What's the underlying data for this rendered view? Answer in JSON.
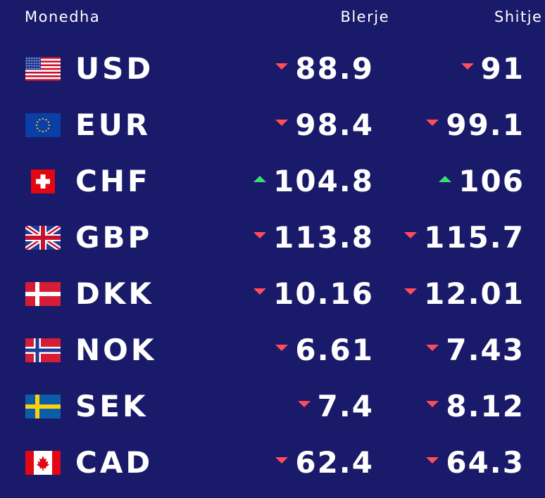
{
  "header": {
    "currency_label": "Monedha",
    "buy_label": "Blerje",
    "sell_label": "Shitje"
  },
  "colors": {
    "background": "#1a1a6b",
    "down": "#ff4d5a",
    "up": "#3ddc6e"
  },
  "rates": [
    {
      "code": "USD",
      "flag": "us-flag-icon",
      "buy": "88.9",
      "buy_dir": "down",
      "sell": "91",
      "sell_dir": "down"
    },
    {
      "code": "EUR",
      "flag": "eu-flag-icon",
      "buy": "98.4",
      "buy_dir": "down",
      "sell": "99.1",
      "sell_dir": "down"
    },
    {
      "code": "CHF",
      "flag": "ch-flag-icon",
      "buy": "104.8",
      "buy_dir": "up",
      "sell": "106",
      "sell_dir": "up"
    },
    {
      "code": "GBP",
      "flag": "gb-flag-icon",
      "buy": "113.8",
      "buy_dir": "down",
      "sell": "115.7",
      "sell_dir": "down"
    },
    {
      "code": "DKK",
      "flag": "dk-flag-icon",
      "buy": "10.16",
      "buy_dir": "down",
      "sell": "12.01",
      "sell_dir": "down"
    },
    {
      "code": "NOK",
      "flag": "no-flag-icon",
      "buy": "6.61",
      "buy_dir": "down",
      "sell": "7.43",
      "sell_dir": "down"
    },
    {
      "code": "SEK",
      "flag": "se-flag-icon",
      "buy": "7.4",
      "buy_dir": "down",
      "sell": "8.12",
      "sell_dir": "down"
    },
    {
      "code": "CAD",
      "flag": "ca-flag-icon",
      "buy": "62.4",
      "buy_dir": "down",
      "sell": "64.3",
      "sell_dir": "down"
    }
  ]
}
